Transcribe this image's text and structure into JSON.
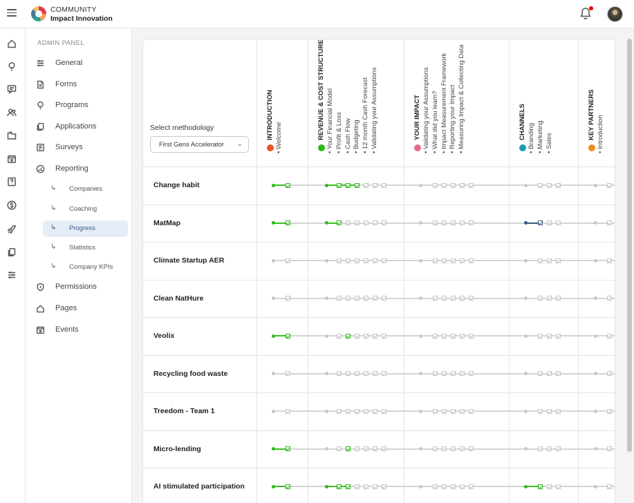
{
  "app": {
    "brand_top": "COMMUNITY",
    "brand_bottom": "Impact Innovation"
  },
  "colors": {
    "done": "#2fb81c",
    "pending": "#c6c6c6",
    "selected": "#3d5a80",
    "notification": "#e00000"
  },
  "rail_icons": [
    "home-icon",
    "lightbulb-icon",
    "message-icon",
    "users-icon",
    "folder-icon",
    "calendar-icon",
    "help-icon",
    "dollar-icon",
    "rocket-icon",
    "copy-icon",
    "sliders-icon"
  ],
  "sidebar": {
    "section_label": "ADMIN PANEL",
    "items": [
      {
        "label": "General",
        "icon": "sliders-icon"
      },
      {
        "label": "Forms",
        "icon": "document-icon"
      },
      {
        "label": "Programs",
        "icon": "lightbulb-icon"
      },
      {
        "label": "Applications",
        "icon": "copy-icon"
      },
      {
        "label": "Surveys",
        "icon": "list-icon"
      },
      {
        "label": "Reporting",
        "icon": "gauge-icon"
      }
    ],
    "reporting_sub": [
      {
        "label": "Companies",
        "active": false
      },
      {
        "label": "Coaching",
        "active": false
      },
      {
        "label": "Progress",
        "active": true
      },
      {
        "label": "Statistics",
        "active": false
      },
      {
        "label": "Company KPIs",
        "active": false
      }
    ],
    "bottom_items": [
      {
        "label": "Permissions",
        "icon": "shield-icon"
      },
      {
        "label": "Pages",
        "icon": "home-icon"
      },
      {
        "label": "Events",
        "icon": "calendar-icon"
      }
    ]
  },
  "progress": {
    "select_label": "Select methodology",
    "methodology": "First Gens Accelerator",
    "columns": [
      {
        "title": "INTRODUCTION",
        "badge_color": "#e8542b",
        "steps": [
          "Welcome"
        ]
      },
      {
        "title": "REVENUE & COST STRUCTURE",
        "badge_color": "#2fb81c",
        "steps": [
          "Your Financial Model",
          "Profit & Loss",
          "Cash Flow",
          "Budgeting",
          "12 month Cash Forecast",
          "Validating your Assumptions"
        ]
      },
      {
        "title": "YOUR IMPACT",
        "badge_color": "#e86a8c",
        "steps": [
          "Validating your Assumptions",
          "What did you learn?",
          "Impact Measurement Framework",
          "Reporting your Impact",
          "Measuring Impact & Collecting Data"
        ]
      },
      {
        "title": "CHANNELS",
        "badge_color": "#1f9bb0",
        "steps": [
          "Branding",
          "Marketing",
          "Sales"
        ]
      },
      {
        "title": "KEY PARTNERS",
        "badge_color": "#f08a24",
        "steps": [
          "Introduction"
        ]
      }
    ],
    "rows": [
      {
        "name": "Change habit",
        "status": [
          [
            1,
            1
          ],
          [
            1,
            1,
            1,
            1,
            0,
            0,
            0
          ],
          [
            0,
            0,
            0,
            0,
            0,
            0
          ],
          [
            0,
            0,
            0,
            0
          ],
          [
            0,
            0
          ]
        ]
      },
      {
        "name": "MatMap",
        "status": [
          [
            1,
            1
          ],
          [
            1,
            1,
            0,
            0,
            0,
            0,
            0
          ],
          [
            0,
            0,
            0,
            0,
            0,
            0
          ],
          [
            2,
            2,
            0,
            0
          ],
          [
            0,
            0
          ]
        ]
      },
      {
        "name": "Climate Startup AER",
        "status": [
          [
            0,
            0
          ],
          [
            0,
            0,
            0,
            0,
            0,
            0,
            0
          ],
          [
            0,
            0,
            0,
            0,
            0,
            0
          ],
          [
            0,
            0,
            0,
            0
          ],
          [
            0,
            0
          ]
        ]
      },
      {
        "name": "Clean NatHure",
        "status": [
          [
            0,
            0
          ],
          [
            0,
            0,
            0,
            0,
            0,
            0,
            0
          ],
          [
            0,
            0,
            0,
            0,
            0,
            0
          ],
          [
            0,
            0,
            0,
            0
          ],
          [
            0,
            0
          ]
        ]
      },
      {
        "name": "Veolix",
        "status": [
          [
            1,
            1
          ],
          [
            0,
            0,
            1,
            0,
            0,
            0,
            0
          ],
          [
            0,
            0,
            0,
            0,
            0,
            0
          ],
          [
            0,
            0,
            0,
            0
          ],
          [
            0,
            0
          ]
        ]
      },
      {
        "name": "Recycling food waste",
        "status": [
          [
            0,
            0
          ],
          [
            0,
            0,
            0,
            0,
            0,
            0,
            0
          ],
          [
            0,
            0,
            0,
            0,
            0,
            0
          ],
          [
            0,
            0,
            0,
            0
          ],
          [
            0,
            0
          ]
        ]
      },
      {
        "name": "Treedom - Team 1",
        "status": [
          [
            0,
            0
          ],
          [
            0,
            0,
            0,
            0,
            0,
            0,
            0
          ],
          [
            0,
            0,
            0,
            0,
            0,
            0
          ],
          [
            0,
            0,
            0,
            0
          ],
          [
            0,
            0
          ]
        ]
      },
      {
        "name": "Micro-lending",
        "status": [
          [
            1,
            1
          ],
          [
            0,
            0,
            1,
            0,
            0,
            0,
            0
          ],
          [
            0,
            0,
            0,
            0,
            0,
            0
          ],
          [
            0,
            0,
            0,
            0
          ],
          [
            0,
            0
          ]
        ]
      },
      {
        "name": "AI stimulated participation",
        "status": [
          [
            1,
            1
          ],
          [
            1,
            1,
            1,
            0,
            0,
            0,
            0
          ],
          [
            0,
            0,
            0,
            0,
            0,
            0
          ],
          [
            1,
            1,
            0,
            0
          ],
          [
            0,
            0
          ]
        ]
      }
    ]
  }
}
